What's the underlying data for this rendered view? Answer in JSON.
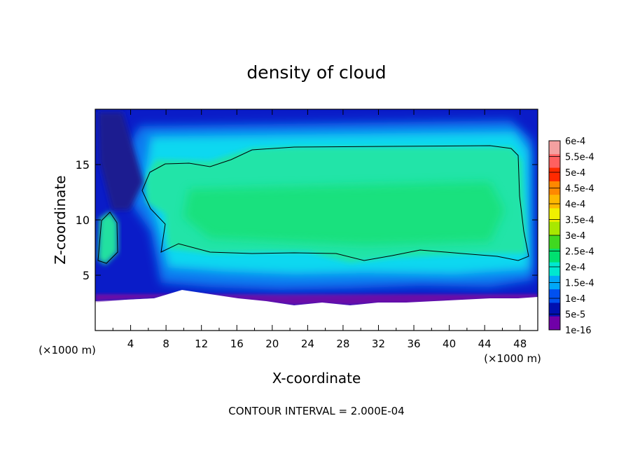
{
  "chart_data": {
    "type": "heatmap",
    "title": "density of cloud",
    "xlabel": "X-coordinate",
    "ylabel": "Z-coordinate",
    "x_unit_left": "(×1000 m)",
    "x_unit_right": "(×1000 m)",
    "footer": "CONTOUR INTERVAL = 2.000E-04",
    "xlim": [
      0,
      50
    ],
    "ylim": [
      0,
      20
    ],
    "x_ticks": [
      4,
      8,
      12,
      16,
      20,
      24,
      28,
      32,
      36,
      40,
      44,
      48
    ],
    "y_ticks": [
      5,
      10,
      15
    ],
    "grid": false,
    "legend_position": "right",
    "colorbar": {
      "labels": [
        "6e-4",
        "5.5e-4",
        "5e-4",
        "4.5e-4",
        "4e-4",
        "3.5e-4",
        "3e-4",
        "2.5e-4",
        "2e-4",
        "1.5e-4",
        "1e-4",
        "5e-5",
        "1e-16"
      ],
      "colors": [
        "#f4a0a0",
        "#ff6060",
        "#ff2a00",
        "#ff8800",
        "#ffb800",
        "#f0f000",
        "#a8e800",
        "#40d820",
        "#00e070",
        "#00e8d0",
        "#00a8f8",
        "#0050f0",
        "#0010b0",
        "#7000a8"
      ]
    },
    "field_summary": {
      "cloud_core_value_range": [
        "2e-4",
        "2.5e-4"
      ],
      "cloud_core_x_range": [
        6,
        49
      ],
      "cloud_core_z_range": [
        6.5,
        17
      ],
      "cloud_base_z": 3,
      "contour_level": "2e-4"
    }
  }
}
